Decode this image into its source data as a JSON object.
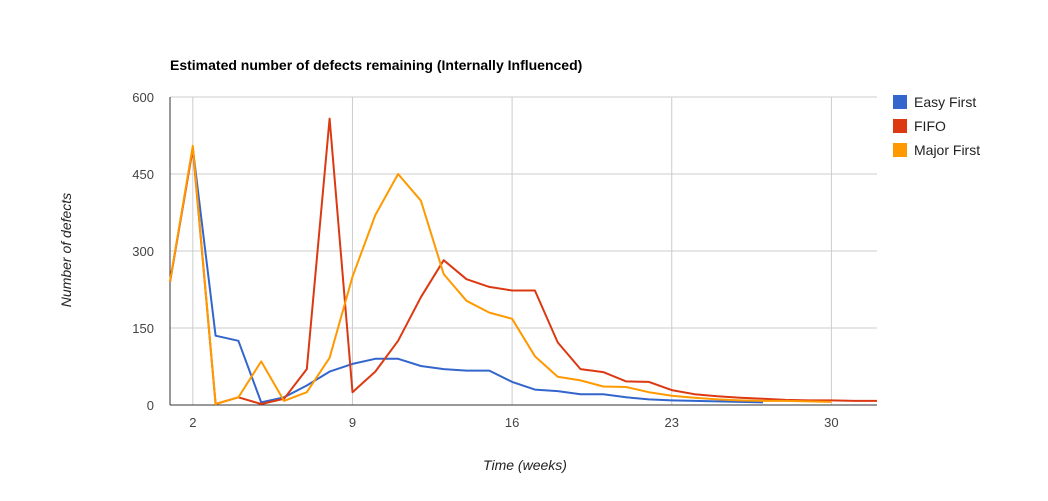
{
  "chart_data": {
    "type": "line",
    "title": "Estimated number of defects remaining (Internally Influenced)",
    "xlabel": "Time (weeks)",
    "ylabel": "Number of defects",
    "xlim": [
      1,
      32
    ],
    "ylim": [
      0,
      600
    ],
    "x_ticks": [
      2,
      9,
      16,
      23,
      30
    ],
    "y_ticks": [
      0,
      150,
      300,
      450,
      600
    ],
    "grid": true,
    "legend_position": "right",
    "series": [
      {
        "name": "Easy First",
        "color": "#3366cc",
        "x": [
          1,
          2,
          3,
          4,
          5,
          6,
          7,
          8,
          9,
          10,
          11,
          12,
          13,
          14,
          15,
          16,
          17,
          18,
          19,
          20,
          21,
          22,
          23,
          24,
          25,
          26,
          27
        ],
        "y": [
          240,
          500,
          135,
          125,
          5,
          15,
          38,
          65,
          80,
          90,
          90,
          76,
          70,
          67,
          67,
          45,
          30,
          27,
          21,
          21,
          15,
          11,
          9,
          8,
          7,
          6,
          5
        ]
      },
      {
        "name": "FIFO",
        "color": "#dc3912",
        "x": [
          1,
          2,
          3,
          4,
          5,
          6,
          7,
          8,
          9,
          10,
          11,
          12,
          13,
          14,
          15,
          16,
          17,
          18,
          19,
          20,
          21,
          22,
          23,
          24,
          25,
          26,
          27,
          28,
          29,
          30,
          31,
          32
        ],
        "y": [
          240,
          500,
          2,
          15,
          2,
          12,
          70,
          558,
          25,
          65,
          125,
          210,
          282,
          245,
          230,
          223,
          223,
          122,
          70,
          64,
          46,
          45,
          29,
          21,
          17,
          14,
          12,
          10,
          9,
          9,
          8,
          8
        ]
      },
      {
        "name": "Major First",
        "color": "#ff9900",
        "x": [
          1,
          2,
          3,
          4,
          5,
          6,
          7,
          8,
          9,
          10,
          11,
          12,
          13,
          14,
          15,
          16,
          17,
          18,
          19,
          20,
          21,
          22,
          23,
          24,
          25,
          26,
          27,
          28,
          29,
          30
        ],
        "y": [
          240,
          505,
          2,
          15,
          85,
          8,
          25,
          92,
          250,
          370,
          450,
          398,
          255,
          203,
          180,
          168,
          95,
          55,
          48,
          36,
          35,
          25,
          18,
          14,
          11,
          9,
          8,
          8,
          7,
          6
        ]
      }
    ]
  }
}
